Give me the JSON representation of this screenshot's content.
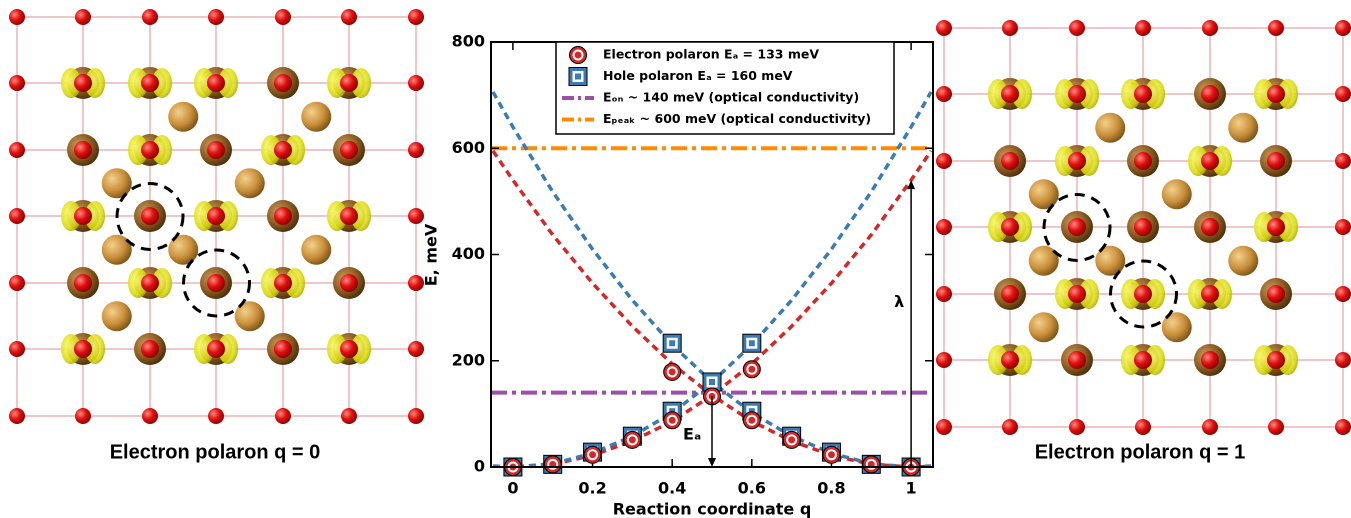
{
  "panels": [
    {
      "caption": "Electron polaron q = 0"
    },
    {
      "caption": "Electron polaron q = 1"
    }
  ],
  "chart_data": {
    "type": "line",
    "xlabel": "Reaction coordinate q",
    "ylabel": "E, meV",
    "xlim": [
      -0.055,
      1.055
    ],
    "ylim": [
      0,
      800
    ],
    "xticks": [
      0,
      0.2,
      0.4,
      0.6,
      0.8,
      1
    ],
    "yticks": [
      0,
      200,
      400,
      600,
      800
    ],
    "legend": "top",
    "series": [
      {
        "name": "Electron polaron Eₐ = 133 meV",
        "color": "#d62728",
        "marker": "circle",
        "x": [
          0,
          0.1,
          0.2,
          0.3,
          0.4,
          0.4,
          0.5,
          0.6,
          0.6,
          0.7,
          0.8,
          0.9,
          1
        ],
        "values": [
          0,
          5,
          23,
          51,
          88,
          179,
          133,
          88,
          184,
          51,
          23,
          5,
          0
        ]
      },
      {
        "name": "Hole polaron Eₐ = 160 meV",
        "color": "#3a7ab5",
        "marker": "square",
        "x": [
          0,
          0.1,
          0.2,
          0.3,
          0.4,
          0.4,
          0.5,
          0.6,
          0.6,
          0.7,
          0.8,
          0.9,
          1
        ],
        "values": [
          0,
          5,
          28,
          58,
          105,
          233,
          160,
          105,
          233,
          58,
          28,
          5,
          0
        ]
      },
      {
        "name": "Eₒₙ ~ 140 meV (optical conductivity)",
        "color": "#9b4fa8",
        "dash": "dashdot",
        "x": [
          -0.055,
          1.055
        ],
        "values": [
          140,
          140
        ]
      },
      {
        "name": "Eₚₑₐₖ ~ 600 meV (optical conductivity)",
        "color": "#ff8c00",
        "dash": "dashdot",
        "x": [
          -0.055,
          1.055
        ],
        "values": [
          600,
          600
        ]
      },
      {
        "color": "#d62728",
        "dash": "dash",
        "x": [
          -0.05,
          0,
          0.1,
          0.2,
          0.3,
          0.4,
          0.5,
          0.6,
          0.7,
          0.8,
          0.9,
          1,
          1.05
        ],
        "values": [
          1,
          0,
          5,
          22,
          49,
          86,
          135,
          194,
          265,
          346,
          437,
          540,
          595
        ]
      },
      {
        "color": "#d62728",
        "dash": "dash",
        "x": [
          -0.05,
          0,
          0.1,
          0.2,
          0.3,
          0.4,
          0.5,
          0.6,
          0.7,
          0.8,
          0.9,
          1,
          1.05
        ],
        "values": [
          595,
          540,
          437,
          346,
          265,
          194,
          135,
          86,
          49,
          22,
          5,
          0,
          1
        ]
      },
      {
        "color": "#3a7ab5",
        "dash": "dash",
        "x": [
          -0.05,
          0,
          0.1,
          0.2,
          0.3,
          0.4,
          0.5,
          0.6,
          0.7,
          0.8,
          0.9,
          1,
          1.05
        ],
        "values": [
          2,
          0,
          6,
          26,
          58,
          102,
          160,
          230,
          314,
          410,
          518,
          640,
          706
        ]
      },
      {
        "color": "#3a7ab5",
        "dash": "dash",
        "x": [
          -0.05,
          0,
          0.1,
          0.2,
          0.3,
          0.4,
          0.5,
          0.6,
          0.7,
          0.8,
          0.9,
          1,
          1.05
        ],
        "values": [
          706,
          640,
          518,
          410,
          314,
          230,
          160,
          102,
          58,
          26,
          6,
          0,
          2
        ]
      }
    ],
    "annotations": [
      {
        "text": "Eₐ",
        "x": 0.45,
        "y": 60
      },
      {
        "text": "λ",
        "x": 0.97,
        "y": 310
      }
    ],
    "arrows": [
      {
        "x": 0.5,
        "from": 133,
        "to": 0
      },
      {
        "x": 1,
        "from": 0,
        "to": 540
      }
    ]
  }
}
